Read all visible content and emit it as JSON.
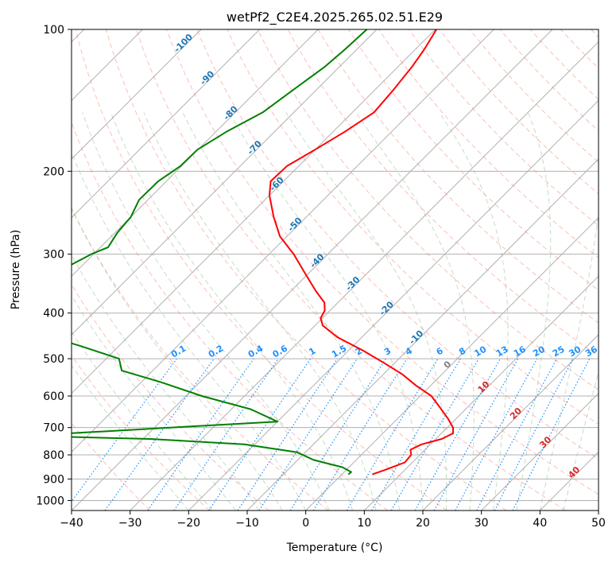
{
  "chart_data": {
    "type": "skew-t",
    "title": "wetPf2_C2E4.2025.265.02.51.E29",
    "xlabel": "Temperature (°C)",
    "ylabel": "Pressure (hPa)",
    "xlim": [
      -40,
      50
    ],
    "ylim": [
      1050,
      100
    ],
    "x_ticks": [
      -40,
      -30,
      -20,
      -10,
      0,
      10,
      20,
      30,
      40,
      50
    ],
    "x_tick_labels": [
      "−40",
      "−30",
      "−20",
      "−10",
      "0",
      "10",
      "20",
      "30",
      "40",
      "50"
    ],
    "y_ticks": [
      100,
      200,
      300,
      400,
      500,
      600,
      700,
      800,
      900,
      1000
    ],
    "y_tick_labels": [
      "100",
      "200",
      "300",
      "400",
      "500",
      "600",
      "700",
      "800",
      "900",
      "1000"
    ],
    "y_scale": "log",
    "grid": true,
    "colors": {
      "temperature": "#ff0000",
      "dewpoint": "#008000",
      "dry_adiabat": "#fa8072",
      "moist_adiabat": "#8fbc8f",
      "mixing_ratio": "#1e90ff",
      "isotherm": "#808080",
      "adiabat_label": "#1f77b4",
      "mixing_label": "#1e90ff",
      "low_adiabat_label": "#d62728",
      "zero_label": "#808080"
    },
    "series": [
      {
        "name": "",
        "role": "temperature",
        "p": [
          100,
          110,
          120,
          135,
          150,
          165,
          180,
          195,
          210,
          225,
          250,
          275,
          300,
          330,
          360,
          380,
          395,
          410,
          425,
          450,
          480,
          510,
          540,
          570,
          600,
          630,
          670,
          700,
          720,
          740,
          760,
          780,
          800,
          830,
          860,
          880
        ],
        "t": [
          -59.8,
          -58.5,
          -57.6,
          -56.8,
          -56.3,
          -58.0,
          -60.0,
          -62.0,
          -62.2,
          -60.0,
          -55.6,
          -51.2,
          -45.8,
          -40.5,
          -35.6,
          -32.3,
          -30.9,
          -30.3,
          -28.7,
          -24.2,
          -17.6,
          -11.9,
          -6.7,
          -2.5,
          1.9,
          4.9,
          8.6,
          11.0,
          12.0,
          11.0,
          8.5,
          7.5,
          8.5,
          8.7,
          6.7,
          5.2
        ]
      },
      {
        "name": "",
        "role": "dewpoint",
        "p": [
          100,
          110,
          120,
          135,
          150,
          165,
          180,
          195,
          210,
          230,
          250,
          270,
          290,
          300,
          320,
          340,
          360,
          370,
          380,
          390,
          410,
          440,
          470,
          500,
          530,
          560,
          600,
          640,
          680,
          700,
          720,
          730,
          740,
          760,
          790,
          820,
          850,
          870,
          880
        ],
        "t": [
          -71.7,
          -72.0,
          -72.5,
          -74.0,
          -75.3,
          -78.2,
          -80.1,
          -80.2,
          -81.4,
          -81.5,
          -80.0,
          -79.6,
          -78.7,
          -80.4,
          -82.4,
          -84.1,
          -87.2,
          -89.0,
          -85.3,
          -91.4,
          -91.0,
          -76.6,
          -66.5,
          -57.8,
          -55.3,
          -46.8,
          -37.3,
          -26.7,
          -20.0,
          -37.3,
          -53.4,
          -58.4,
          -38.8,
          -21.8,
          -11.4,
          -7.3,
          -1.1,
          1.2,
          1.1
        ]
      }
    ],
    "adiabat_labels": [
      "-100",
      "-90",
      "-80",
      "-70",
      "-60",
      "-50",
      "-40",
      "-30",
      "-20",
      "-10",
      "0",
      "10",
      "20",
      "30",
      "40"
    ],
    "mixing_ratio_labels": [
      "0.1",
      "0.2",
      "0.4",
      "0.6",
      "1",
      "1.5",
      "2",
      "3",
      "4",
      "6",
      "8",
      "10",
      "13",
      "16",
      "20",
      "25",
      "30",
      "36"
    ]
  }
}
